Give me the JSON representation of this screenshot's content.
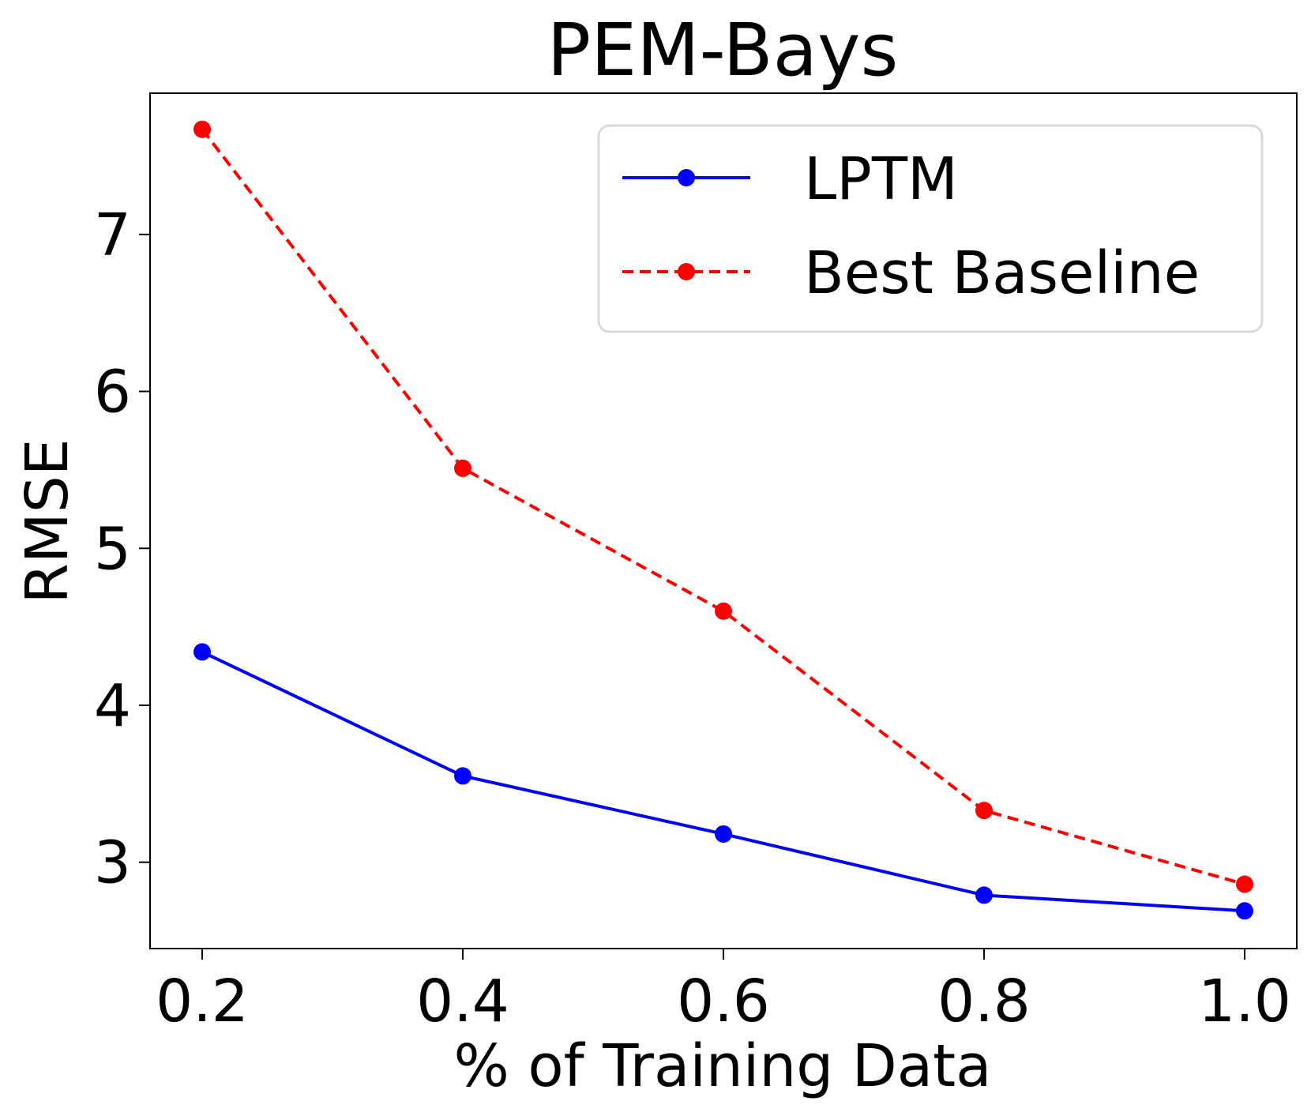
{
  "chart_data": {
    "type": "line",
    "title": "PEM-Bays",
    "xlabel": "% of Training Data",
    "ylabel": "RMSE",
    "x": [
      0.2,
      0.4,
      0.6,
      0.8,
      1.0
    ],
    "xticks": [
      "0.2",
      "0.4",
      "0.6",
      "0.8",
      "1.0"
    ],
    "yticks": [
      "3",
      "4",
      "5",
      "6",
      "7"
    ],
    "ylim": [
      2.45,
      7.9
    ],
    "xlim": [
      0.16,
      1.04
    ],
    "grid": false,
    "legend_position": "top-right",
    "series": [
      {
        "name": "LPTM",
        "color": "#0000ff",
        "line_style": "solid",
        "marker": "circle",
        "values": [
          4.34,
          3.55,
          3.18,
          2.79,
          2.69
        ]
      },
      {
        "name": "Best Baseline",
        "color": "#ff0000",
        "line_style": "dashed",
        "marker": "circle",
        "values": [
          7.67,
          5.51,
          4.6,
          3.33,
          2.86
        ]
      }
    ]
  }
}
